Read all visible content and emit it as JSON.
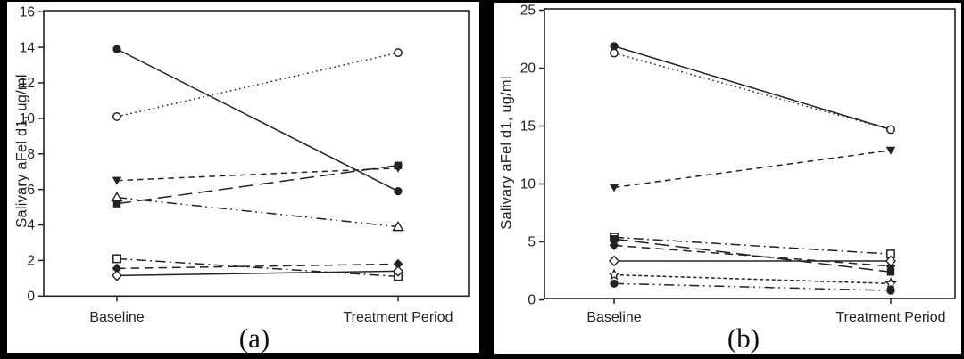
{
  "figure_caption_a": "(a)",
  "figure_caption_b": "(b)",
  "colors": {
    "ink": "#222222",
    "panel_background": "#ffffff",
    "page_border": "#000000"
  },
  "chart_data": [
    {
      "type": "line",
      "caption": "(a)",
      "ylabel": "Salivary aFel d1, ug/ml",
      "xlabel": "",
      "categories": [
        "Baseline",
        "Treatment Period"
      ],
      "ylim": [
        0,
        16
      ],
      "yticks": [
        0,
        2,
        4,
        6,
        8,
        10,
        12,
        14,
        16
      ],
      "grid": false,
      "legend": "none",
      "series": [
        {
          "name": "subject-filled-circle",
          "marker": "circle-filled",
          "line_style": "solid",
          "values": [
            13.9,
            5.9
          ]
        },
        {
          "name": "subject-open-circle",
          "marker": "circle-open",
          "line_style": "dotted",
          "values": [
            10.1,
            13.7
          ]
        },
        {
          "name": "subject-filled-triangle-down",
          "marker": "triangle-down-filled",
          "line_style": "short-dash",
          "values": [
            6.5,
            7.2
          ]
        },
        {
          "name": "subject-filled-square",
          "marker": "square-filled",
          "line_style": "long-dash",
          "values": [
            5.2,
            7.35
          ]
        },
        {
          "name": "subject-open-triangle",
          "marker": "triangle-up-open",
          "line_style": "dash-dot-dot",
          "values": [
            5.55,
            3.9
          ]
        },
        {
          "name": "subject-open-square",
          "marker": "square-open",
          "line_style": "dash-dot",
          "values": [
            2.1,
            1.1
          ]
        },
        {
          "name": "subject-filled-diamond",
          "marker": "diamond-filled",
          "line_style": "medium-dash",
          "values": [
            1.55,
            1.8
          ]
        },
        {
          "name": "subject-open-diamond",
          "marker": "diamond-open",
          "line_style": "solid",
          "values": [
            1.15,
            1.4
          ]
        }
      ]
    },
    {
      "type": "line",
      "caption": "(b)",
      "ylabel": "Salivary aFel d1, ug/ml",
      "xlabel": "",
      "categories": [
        "Baseline",
        "Treatment Period"
      ],
      "ylim": [
        0,
        25
      ],
      "yticks": [
        0,
        5,
        10,
        15,
        20,
        25
      ],
      "grid": false,
      "legend": "none",
      "series": [
        {
          "name": "subject-filled-circle",
          "marker": "circle-filled",
          "line_style": "solid",
          "values": [
            21.9,
            14.7
          ]
        },
        {
          "name": "subject-open-circle",
          "marker": "circle-open",
          "line_style": "dotted",
          "values": [
            21.3,
            14.7
          ]
        },
        {
          "name": "subject-filled-triangle-down",
          "marker": "triangle-down-filled",
          "line_style": "short-dash",
          "values": [
            9.7,
            12.9
          ]
        },
        {
          "name": "subject-open-square",
          "marker": "square-open",
          "line_style": "dash-dot",
          "values": [
            5.4,
            3.95
          ]
        },
        {
          "name": "subject-filled-square",
          "marker": "square-filled",
          "line_style": "long-dash",
          "values": [
            5.25,
            2.4
          ]
        },
        {
          "name": "subject-filled-diamond",
          "marker": "diamond-filled",
          "line_style": "medium-dash",
          "values": [
            4.7,
            2.9
          ]
        },
        {
          "name": "subject-open-diamond",
          "marker": "diamond-open",
          "line_style": "solid",
          "values": [
            3.35,
            3.35
          ]
        },
        {
          "name": "subject-open-star",
          "marker": "star-open",
          "line_style": "fine-dash",
          "values": [
            2.15,
            1.4
          ]
        },
        {
          "name": "subject-filled-circle-2",
          "marker": "circle-filled",
          "line_style": "dash-dot-dot",
          "values": [
            1.4,
            0.8
          ]
        }
      ]
    }
  ]
}
